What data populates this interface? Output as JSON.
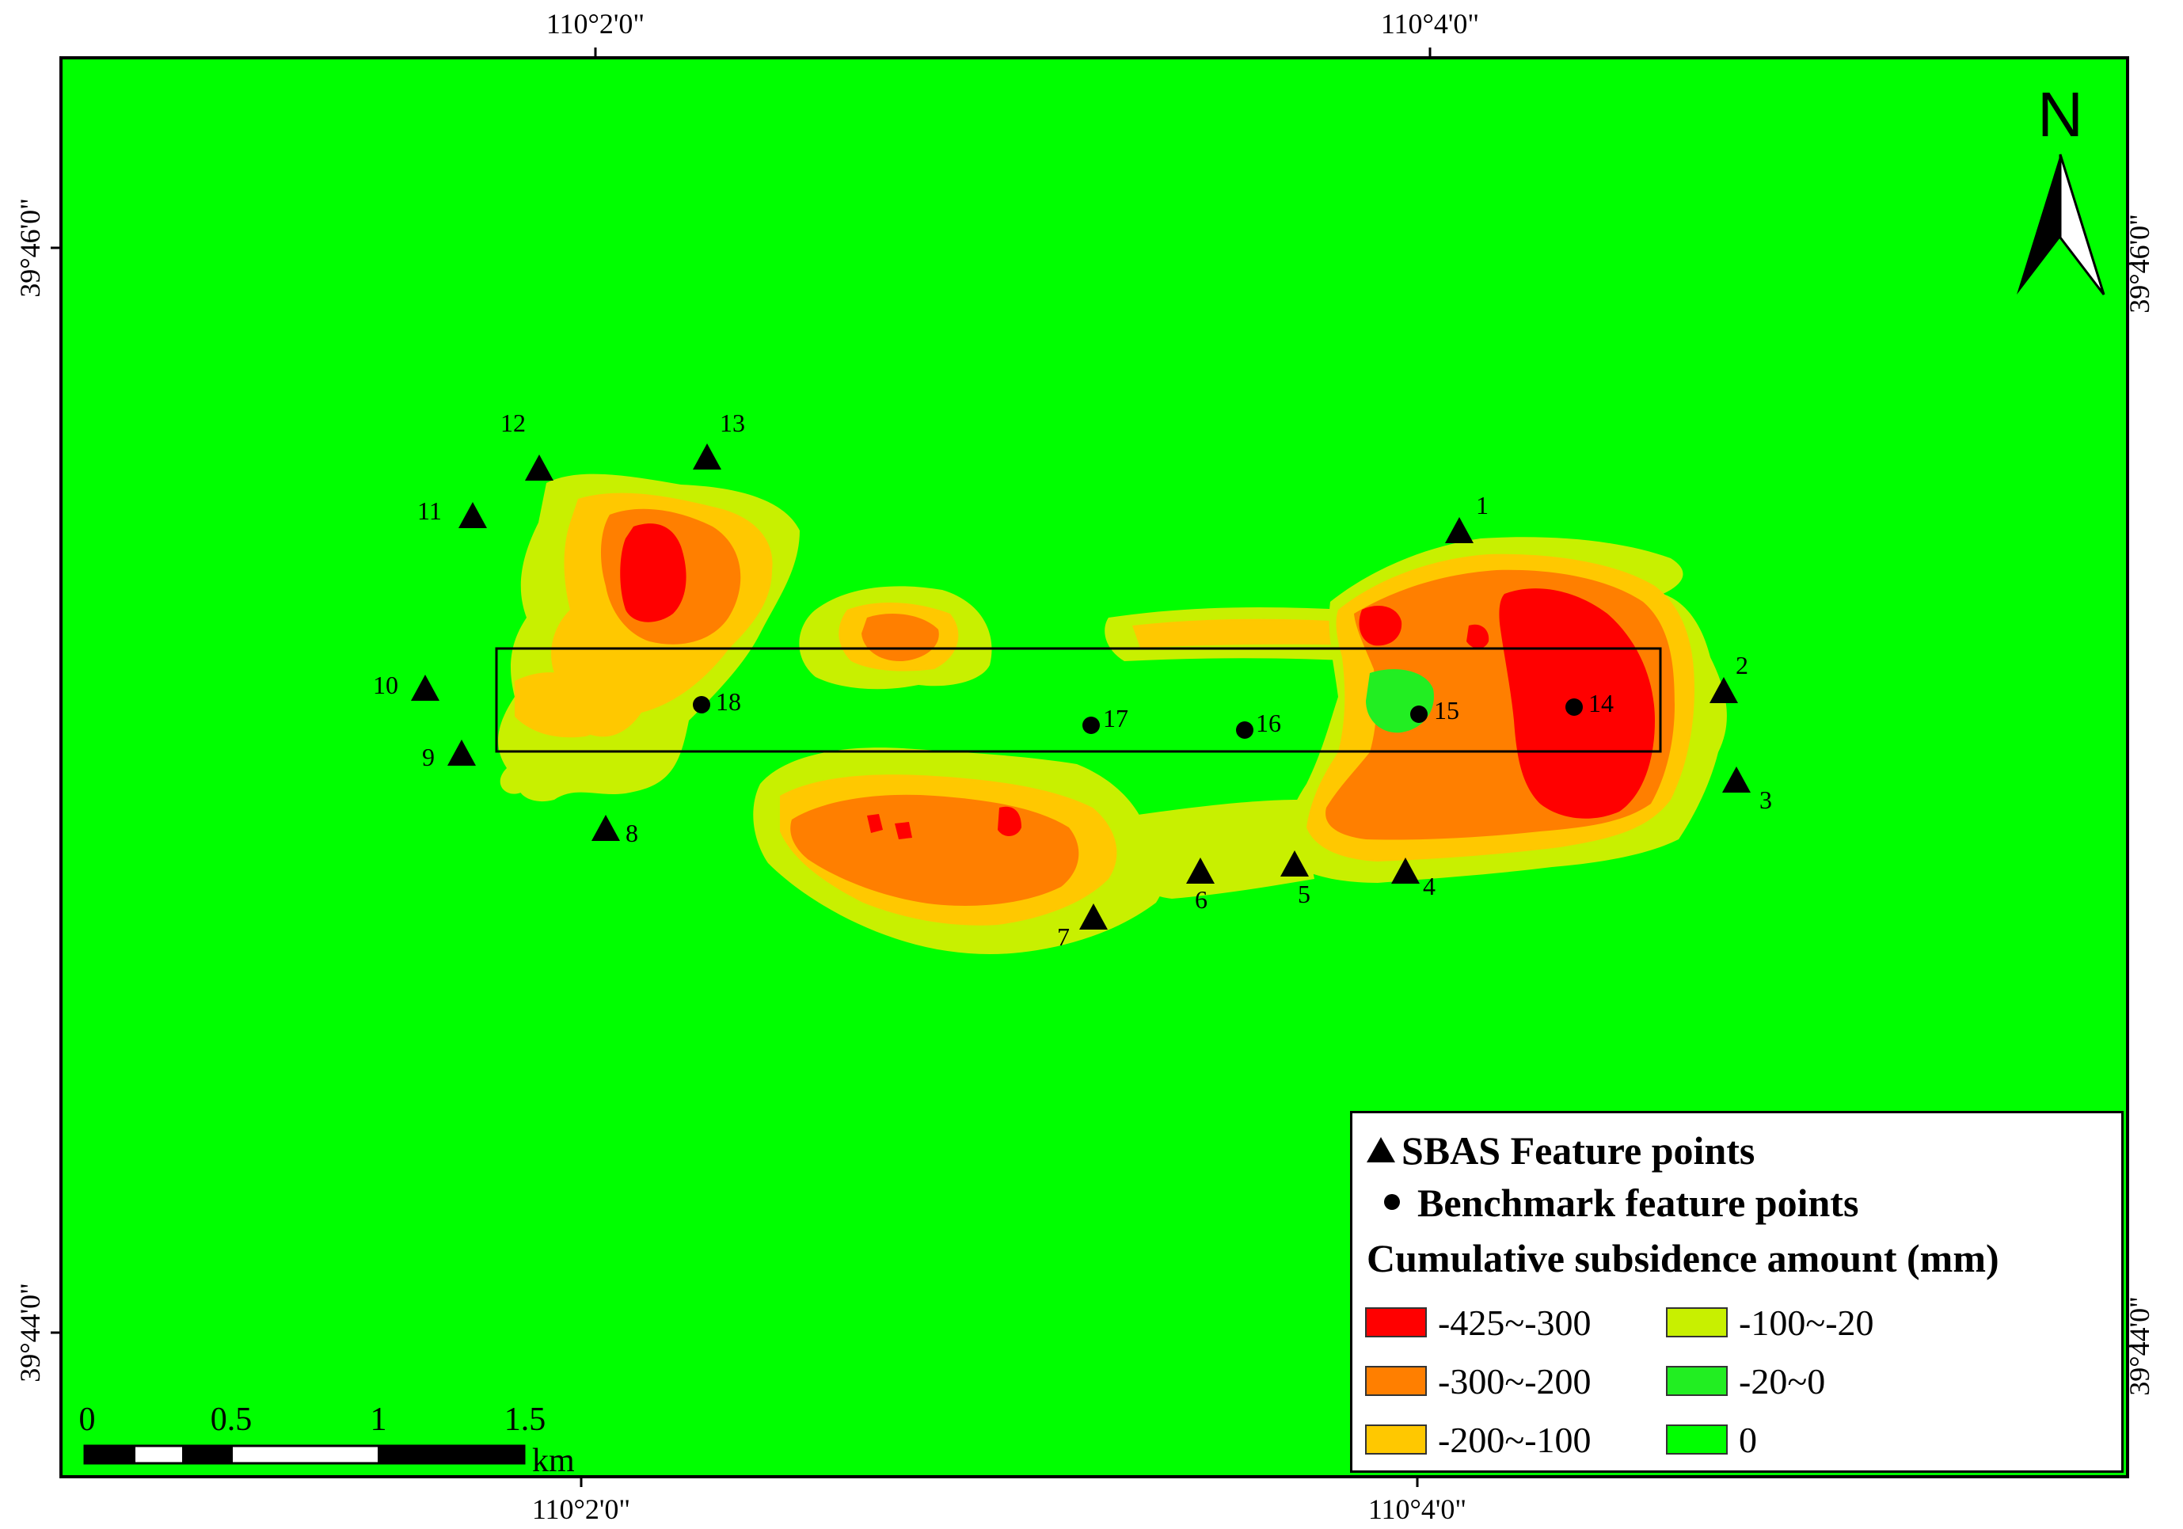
{
  "map": {
    "colors": {
      "background": "#00ff00",
      "c_425_300": "#ff0000",
      "c_300_200": "#ff7f00",
      "c_200_100": "#ffc800",
      "c_100_20": "#c8f000",
      "c_20_0": "#22ee22",
      "frame": "#000000"
    },
    "top_longitudes": [
      "110°2'0\"",
      "110°4'0\""
    ],
    "bottom_longitudes": [
      "110°2'0\"",
      "110°4'0\""
    ],
    "left_latitudes": [
      "39°46'0\"",
      "39°44'0\""
    ],
    "right_latitudes": [
      "39°46'0\"",
      "39°44'0\""
    ],
    "north_label": "N",
    "scale": {
      "ticks": [
        "0",
        "0.5",
        "1",
        "1.5"
      ],
      "unit": "km"
    },
    "sbas_points": [
      {
        "id": "1"
      },
      {
        "id": "2"
      },
      {
        "id": "3"
      },
      {
        "id": "4"
      },
      {
        "id": "5"
      },
      {
        "id": "6"
      },
      {
        "id": "7"
      },
      {
        "id": "8"
      },
      {
        "id": "9"
      },
      {
        "id": "10"
      },
      {
        "id": "11"
      },
      {
        "id": "12"
      },
      {
        "id": "13"
      }
    ],
    "benchmark_points": [
      {
        "id": "14"
      },
      {
        "id": "15"
      },
      {
        "id": "16"
      },
      {
        "id": "17"
      },
      {
        "id": "18"
      }
    ]
  },
  "legend": {
    "sbas_label": "SBAS Feature points",
    "benchmark_label": "Benchmark feature points",
    "title": "Cumulative subsidence amount (mm)",
    "classes": [
      {
        "label": "-425~-300",
        "color": "#ff0000"
      },
      {
        "label": "-300~-200",
        "color": "#ff7f00"
      },
      {
        "label": "-200~-100",
        "color": "#ffc800"
      },
      {
        "label": "-100~-20",
        "color": "#c8f000"
      },
      {
        "label": "-20~0",
        "color": "#22ee22"
      },
      {
        "label": "0",
        "color": "#00ff00"
      }
    ]
  }
}
